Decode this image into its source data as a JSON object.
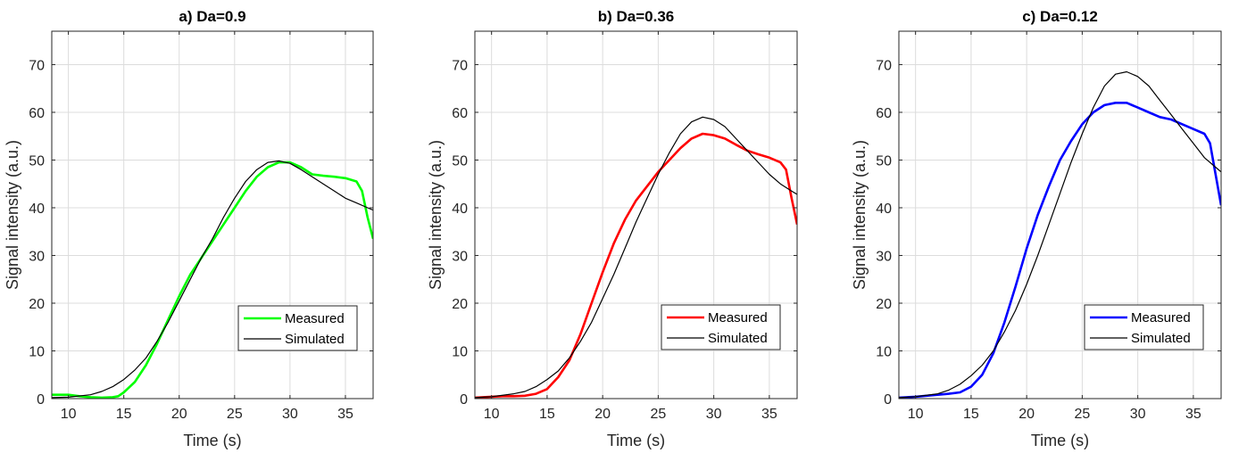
{
  "chart_data": [
    {
      "type": "line",
      "title": "a) Da=0.9",
      "xlabel": "Time (s)",
      "ylabel": "Signal intensity (a.u.)",
      "xlim": [
        8.5,
        37.5
      ],
      "ylim": [
        0,
        77
      ],
      "xticks": [
        10,
        15,
        20,
        25,
        30,
        35
      ],
      "yticks": [
        0,
        10,
        20,
        30,
        40,
        50,
        60,
        70
      ],
      "grid": true,
      "legend_position": "bottom-right",
      "series": [
        {
          "name": "Measured",
          "color": "#00ff00",
          "x": [
            8.5,
            10,
            11,
            12,
            13,
            14,
            14.5,
            15,
            16,
            17,
            18,
            19,
            20,
            21,
            22,
            23,
            24,
            25,
            26,
            27,
            28,
            29,
            30,
            31,
            32,
            33,
            34,
            35,
            36,
            36.5,
            37,
            37.5
          ],
          "y": [
            0.8,
            0.8,
            0.5,
            0.3,
            0.2,
            0.3,
            0.5,
            1.3,
            3.5,
            7.0,
            11.5,
            16.5,
            21.5,
            26.0,
            29.5,
            33.0,
            36.5,
            40.0,
            43.5,
            46.5,
            48.5,
            49.5,
            49.5,
            48.5,
            47.0,
            46.7,
            46.5,
            46.2,
            45.5,
            43.5,
            38.0,
            33.5
          ]
        },
        {
          "name": "Simulated",
          "color": "#000000",
          "x": [
            8.5,
            10,
            12,
            13,
            14,
            15,
            16,
            17,
            18,
            19,
            20,
            21,
            22,
            23,
            24,
            25,
            26,
            27,
            28,
            29,
            30,
            31,
            32,
            33,
            34,
            35,
            36,
            37,
            37.5
          ],
          "y": [
            0.2,
            0.3,
            0.8,
            1.5,
            2.5,
            4.0,
            6.0,
            8.5,
            12.0,
            16.0,
            20.5,
            25.0,
            29.5,
            33.5,
            38.0,
            42.0,
            45.5,
            48.0,
            49.5,
            49.8,
            49.3,
            48.0,
            46.5,
            45.0,
            43.5,
            42.0,
            41.0,
            40.0,
            39.5
          ]
        }
      ]
    },
    {
      "type": "line",
      "title": "b) Da=0.36",
      "xlabel": "Time (s)",
      "ylabel": "Signal intensity (a.u.)",
      "xlim": [
        8.5,
        37.5
      ],
      "ylim": [
        0,
        77
      ],
      "xticks": [
        10,
        15,
        20,
        25,
        30,
        35
      ],
      "yticks": [
        0,
        10,
        20,
        30,
        40,
        50,
        60,
        70
      ],
      "grid": true,
      "legend_position": "bottom-right",
      "series": [
        {
          "name": "Measured",
          "color": "#ff0000",
          "x": [
            8.5,
            10,
            11,
            12,
            13,
            14,
            15,
            16,
            17,
            18,
            19,
            20,
            21,
            22,
            23,
            24,
            25,
            26,
            27,
            28,
            29,
            30,
            31,
            32,
            33,
            34,
            35,
            36,
            36.5,
            37,
            37.5
          ],
          "y": [
            0.2,
            0.4,
            0.5,
            0.5,
            0.6,
            1.0,
            2.0,
            4.5,
            8.0,
            13.5,
            20.0,
            26.5,
            32.5,
            37.5,
            41.5,
            44.5,
            47.5,
            50.0,
            52.5,
            54.5,
            55.5,
            55.2,
            54.5,
            53.2,
            52.0,
            51.2,
            50.5,
            49.5,
            48.0,
            42.0,
            36.5
          ]
        },
        {
          "name": "Simulated",
          "color": "#000000",
          "x": [
            8.5,
            10,
            12,
            13,
            14,
            15,
            16,
            17,
            18,
            19,
            20,
            21,
            22,
            23,
            24,
            25,
            26,
            27,
            28,
            29,
            30,
            31,
            32,
            33,
            34,
            35,
            36,
            37,
            37.5
          ],
          "y": [
            0.2,
            0.4,
            1.0,
            1.5,
            2.5,
            4.0,
            5.8,
            8.5,
            12.0,
            16.0,
            21.0,
            26.0,
            31.5,
            37.0,
            42.0,
            47.0,
            51.5,
            55.5,
            58.0,
            59.0,
            58.5,
            57.0,
            54.5,
            52.0,
            49.5,
            47.0,
            45.0,
            43.5,
            42.8
          ]
        }
      ]
    },
    {
      "type": "line",
      "title": "c) Da=0.12",
      "xlabel": "Time (s)",
      "ylabel": "Signal intensity (a.u.)",
      "xlim": [
        8.5,
        37.5
      ],
      "ylim": [
        0,
        77
      ],
      "xticks": [
        10,
        15,
        20,
        25,
        30,
        35
      ],
      "yticks": [
        0,
        10,
        20,
        30,
        40,
        50,
        60,
        70
      ],
      "grid": true,
      "legend_position": "bottom-right",
      "series": [
        {
          "name": "Measured",
          "color": "#0000ff",
          "x": [
            8.5,
            10,
            11,
            12,
            13,
            14,
            15,
            16,
            17,
            18,
            19,
            20,
            21,
            22,
            23,
            24,
            25,
            26,
            27,
            28,
            29,
            30,
            31,
            32,
            33,
            34,
            35,
            36,
            36.5,
            37,
            37.5
          ],
          "y": [
            0.2,
            0.4,
            0.6,
            0.8,
            1.0,
            1.3,
            2.5,
            5.0,
            9.5,
            16.0,
            23.5,
            31.5,
            38.5,
            44.5,
            50.0,
            54.0,
            57.5,
            60.0,
            61.5,
            62.0,
            62.0,
            61.0,
            60.0,
            59.0,
            58.5,
            57.5,
            56.5,
            55.5,
            53.5,
            47.0,
            40.5
          ]
        },
        {
          "name": "Simulated",
          "color": "#000000",
          "x": [
            8.5,
            10,
            12,
            13,
            14,
            15,
            16,
            17,
            18,
            19,
            20,
            21,
            22,
            23,
            24,
            25,
            26,
            27,
            28,
            29,
            30,
            31,
            32,
            33,
            34,
            35,
            36,
            37,
            37.5
          ],
          "y": [
            0.2,
            0.4,
            1.0,
            1.8,
            3.0,
            4.8,
            7.0,
            10.0,
            14.0,
            18.5,
            24.0,
            30.0,
            36.5,
            43.0,
            49.5,
            55.5,
            61.0,
            65.5,
            68.0,
            68.5,
            67.5,
            65.5,
            62.5,
            59.5,
            56.5,
            53.5,
            50.5,
            48.5,
            47.5
          ]
        }
      ]
    }
  ]
}
